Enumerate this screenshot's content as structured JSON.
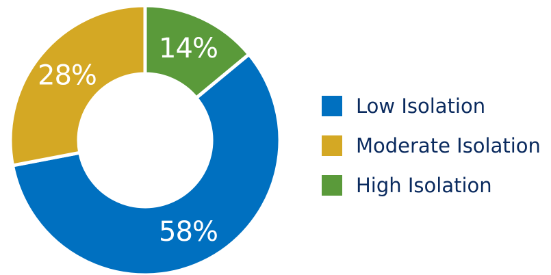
{
  "chart_data": {
    "type": "pie",
    "donut": true,
    "categories": [
      "Low Isolation",
      "Moderate Isolation",
      "High Isolation"
    ],
    "values": [
      58,
      28,
      14
    ],
    "labels": [
      "58%",
      "28%",
      "14%"
    ],
    "colors": [
      "#0070c0",
      "#d4a824",
      "#5a9a3a"
    ],
    "label_color": "#ffffff",
    "legend_text_color": "#0a2a5e",
    "legend_position": "right",
    "title": ""
  }
}
